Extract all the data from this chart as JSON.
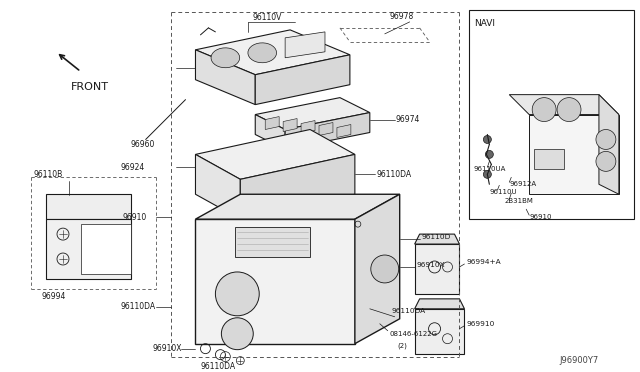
{
  "bg_color": "#ffffff",
  "line_color": "#1a1a1a",
  "label_color": "#1a1a1a",
  "font_size": 5.5,
  "diagram_id": "J96900Y7",
  "navi_label": "NAVI",
  "front_label": "FRONT",
  "gray_fill": "#e8e8e8",
  "light_gray": "#f0f0f0"
}
